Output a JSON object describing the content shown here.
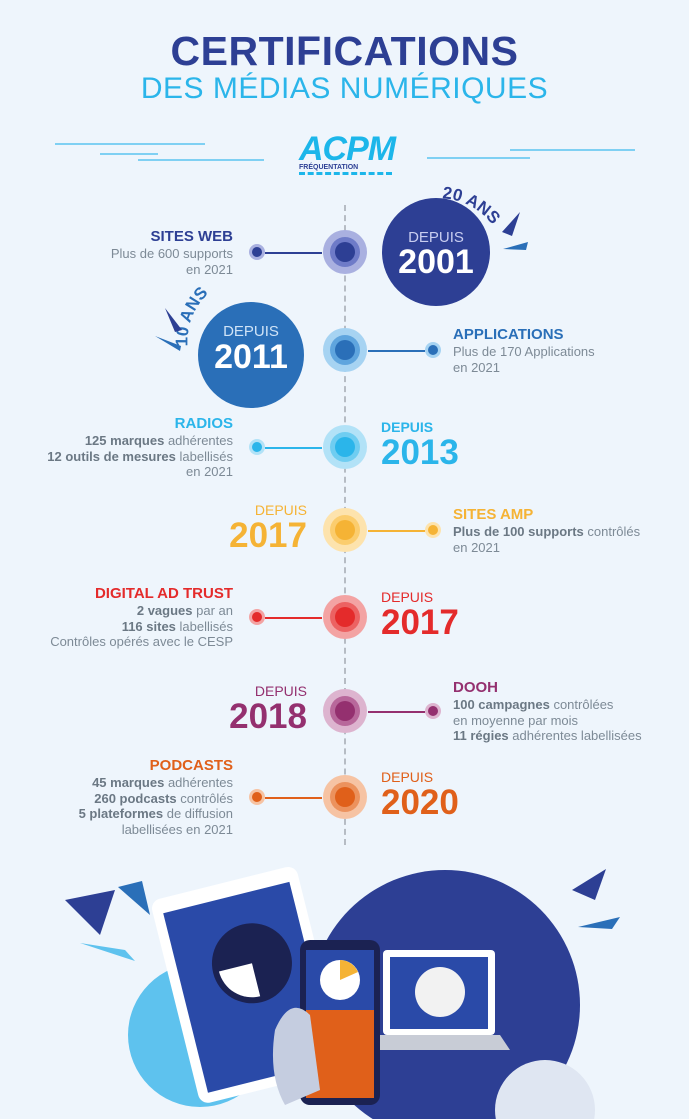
{
  "title": {
    "line1": "CERTIFICATIONS",
    "line2": "DES MÉDIAS NUMÉRIQUES"
  },
  "logo": {
    "name": "ACPM",
    "subtitle": "FRÉQUENTATION"
  },
  "badges": [
    {
      "anniversary": "20 ANS",
      "label": "DEPUIS",
      "year": "2001",
      "color": "#2d3f94"
    },
    {
      "anniversary": "10 ANS",
      "label": "DEPUIS",
      "year": "2011",
      "color": "#2a6fb8"
    }
  ],
  "items": [
    {
      "title": "SITES WEB",
      "color": "#2d3f94",
      "ring1": "#a9b0e0",
      "ring2": "#6e7bc8",
      "side": "left",
      "lines": [
        [
          {
            "b": "",
            "t": "Plus de 600 supports"
          }
        ],
        [
          {
            "b": "",
            "t": "en 2021"
          }
        ]
      ]
    },
    {
      "title": "APPLICATIONS",
      "color": "#2a6fb8",
      "ring1": "#a6d3f2",
      "ring2": "#5fa5de",
      "side": "right",
      "lines": [
        [
          {
            "b": "",
            "t": "Plus de 170 Applications"
          }
        ],
        [
          {
            "b": "",
            "t": "en 2021"
          }
        ]
      ]
    },
    {
      "title": "RADIOS",
      "color": "#2bb5ea",
      "ring1": "#b2e2f7",
      "ring2": "#6fcdf1",
      "side": "left",
      "depuis": "DEPUIS",
      "year": "2013",
      "lines": [
        [
          {
            "b": "125 marques",
            "t": " adhérentes"
          }
        ],
        [
          {
            "b": "12 outils de mesures",
            "t": " labellisés"
          }
        ],
        [
          {
            "b": "",
            "t": "en 2021"
          }
        ]
      ]
    },
    {
      "title": "SITES AMP",
      "color": "#f5b335",
      "ring1": "#fde3ad",
      "ring2": "#fbcd6e",
      "side": "right",
      "depuis": "DEPUIS",
      "year": "2017",
      "lines": [
        [
          {
            "b": "Plus de 100 supports",
            "t": " contrôlés"
          }
        ],
        [
          {
            "b": "",
            "t": "en 2021"
          }
        ]
      ]
    },
    {
      "title": "DIGITAL AD TRUST",
      "color": "#e42b2b",
      "ring1": "#f3a3a3",
      "ring2": "#ec6262",
      "side": "left",
      "depuis": "DEPUIS",
      "year": "2017",
      "lines": [
        [
          {
            "b": "2 vagues",
            "t": " par an"
          }
        ],
        [
          {
            "b": "116 sites",
            "t": " labellisés"
          }
        ],
        [
          {
            "b": "",
            "t": "Contrôles opérés avec le CESP"
          }
        ]
      ]
    },
    {
      "title": "DOOH",
      "color": "#94306f",
      "ring1": "#ddb4cf",
      "ring2": "#b8689b",
      "side": "right",
      "depuis": "DEPUIS",
      "year": "2018",
      "lines": [
        [
          {
            "b": "100 campagnes",
            "t": " contrôlées"
          }
        ],
        [
          {
            "b": "",
            "t": "en moyenne par mois"
          }
        ],
        [
          {
            "b": "11 régies",
            "t": " adhérentes labellisées"
          }
        ]
      ]
    },
    {
      "title": "PODCASTS",
      "color": "#e0601a",
      "ring1": "#f6c3a3",
      "ring2": "#ec925d",
      "side": "left",
      "depuis": "DEPUIS",
      "year": "2020",
      "lines": [
        [
          {
            "b": "45 marques",
            "t": " adhérentes"
          }
        ],
        [
          {
            "b": "260 podcasts",
            "t": " contrôlés"
          }
        ],
        [
          {
            "b": "5 plateformes",
            "t": " de diffusion"
          }
        ],
        [
          {
            "b": "",
            "t": "labellisées en 2021"
          }
        ]
      ]
    }
  ]
}
